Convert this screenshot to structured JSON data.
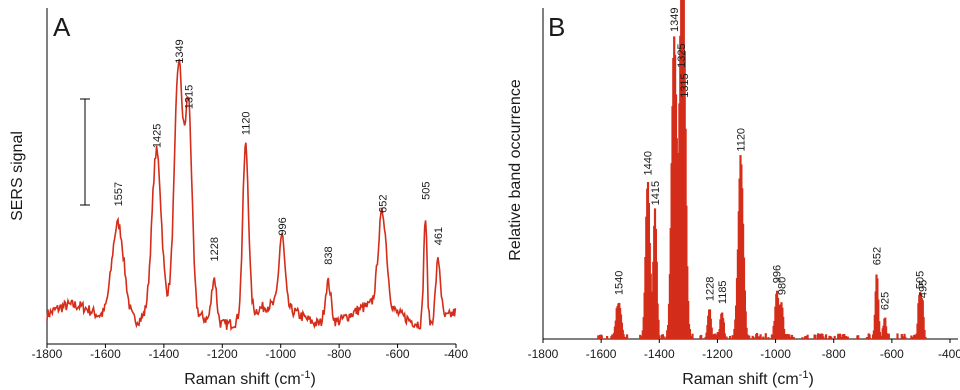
{
  "chart_data": [
    {
      "panel": "A",
      "type": "line",
      "color": "#d42d1a",
      "ylabel": "SERS signal",
      "xlabel_main": "Raman shift (cm",
      "xlabel_sup": "-1",
      "xlabel_end": ")",
      "xlim": [
        -1800,
        -400
      ],
      "ylim": [
        0,
        1
      ],
      "xticks": [
        "-1800",
        "-1600",
        "-1400",
        "-1200",
        "-1000",
        "-800",
        "-600",
        "-400"
      ],
      "scale_bar": true,
      "baseline": 0.09,
      "peaks": [
        {
          "x": -1557,
          "y": 0.4,
          "w": 30,
          "label": "1557"
        },
        {
          "x": -1425,
          "y": 0.58,
          "w": 22,
          "label": "1425"
        },
        {
          "x": -1349,
          "y": 0.84,
          "w": 20,
          "label": "1349"
        },
        {
          "x": -1315,
          "y": 0.7,
          "w": 16,
          "label": "1315"
        },
        {
          "x": -1228,
          "y": 0.23,
          "w": 12,
          "label": "1228"
        },
        {
          "x": -1120,
          "y": 0.62,
          "w": 14,
          "label": "1120"
        },
        {
          "x": -996,
          "y": 0.31,
          "w": 14,
          "label": "996"
        },
        {
          "x": -838,
          "y": 0.22,
          "w": 14,
          "label": "838"
        },
        {
          "x": -652,
          "y": 0.38,
          "w": 20,
          "label": "652"
        },
        {
          "x": -505,
          "y": 0.42,
          "w": 8,
          "label": "505"
        },
        {
          "x": -461,
          "y": 0.28,
          "w": 12,
          "label": "461"
        }
      ]
    },
    {
      "panel": "B",
      "type": "bar",
      "color": "#d42d1a",
      "ylabel": "Relative band occurrence",
      "xlabel_main": "Raman shift (cm",
      "xlabel_sup": "-1",
      "xlabel_end": ")",
      "xlim": [
        -1800,
        -400
      ],
      "ylim": [
        0,
        1
      ],
      "xticks": [
        "-1800",
        "-1600",
        "-1400",
        "-1200",
        "-1000",
        "-800",
        "-600",
        "-400"
      ],
      "peaks": [
        {
          "x": -1540,
          "y": 0.12,
          "w": 12,
          "label": "1540"
        },
        {
          "x": -1440,
          "y": 0.52,
          "w": 10,
          "label": "1440"
        },
        {
          "x": -1415,
          "y": 0.42,
          "w": 8,
          "label": "1415"
        },
        {
          "x": -1349,
          "y": 1.0,
          "w": 12,
          "label": "1349"
        },
        {
          "x": -1325,
          "y": 0.88,
          "w": 10,
          "label": "1325"
        },
        {
          "x": -1315,
          "y": 0.78,
          "w": 10,
          "label": "1315"
        },
        {
          "x": -1228,
          "y": 0.1,
          "w": 8,
          "label": "1228"
        },
        {
          "x": -1185,
          "y": 0.09,
          "w": 8,
          "label": "1185"
        },
        {
          "x": -1120,
          "y": 0.6,
          "w": 12,
          "label": "1120"
        },
        {
          "x": -996,
          "y": 0.16,
          "w": 8,
          "label": "996"
        },
        {
          "x": -980,
          "y": 0.12,
          "w": 8,
          "label": "980"
        },
        {
          "x": -652,
          "y": 0.22,
          "w": 7,
          "label": "652"
        },
        {
          "x": -625,
          "y": 0.07,
          "w": 6,
          "label": "625"
        },
        {
          "x": -505,
          "y": 0.14,
          "w": 7,
          "label": "505"
        },
        {
          "x": -495,
          "y": 0.11,
          "w": 6,
          "label": "495"
        }
      ]
    }
  ]
}
